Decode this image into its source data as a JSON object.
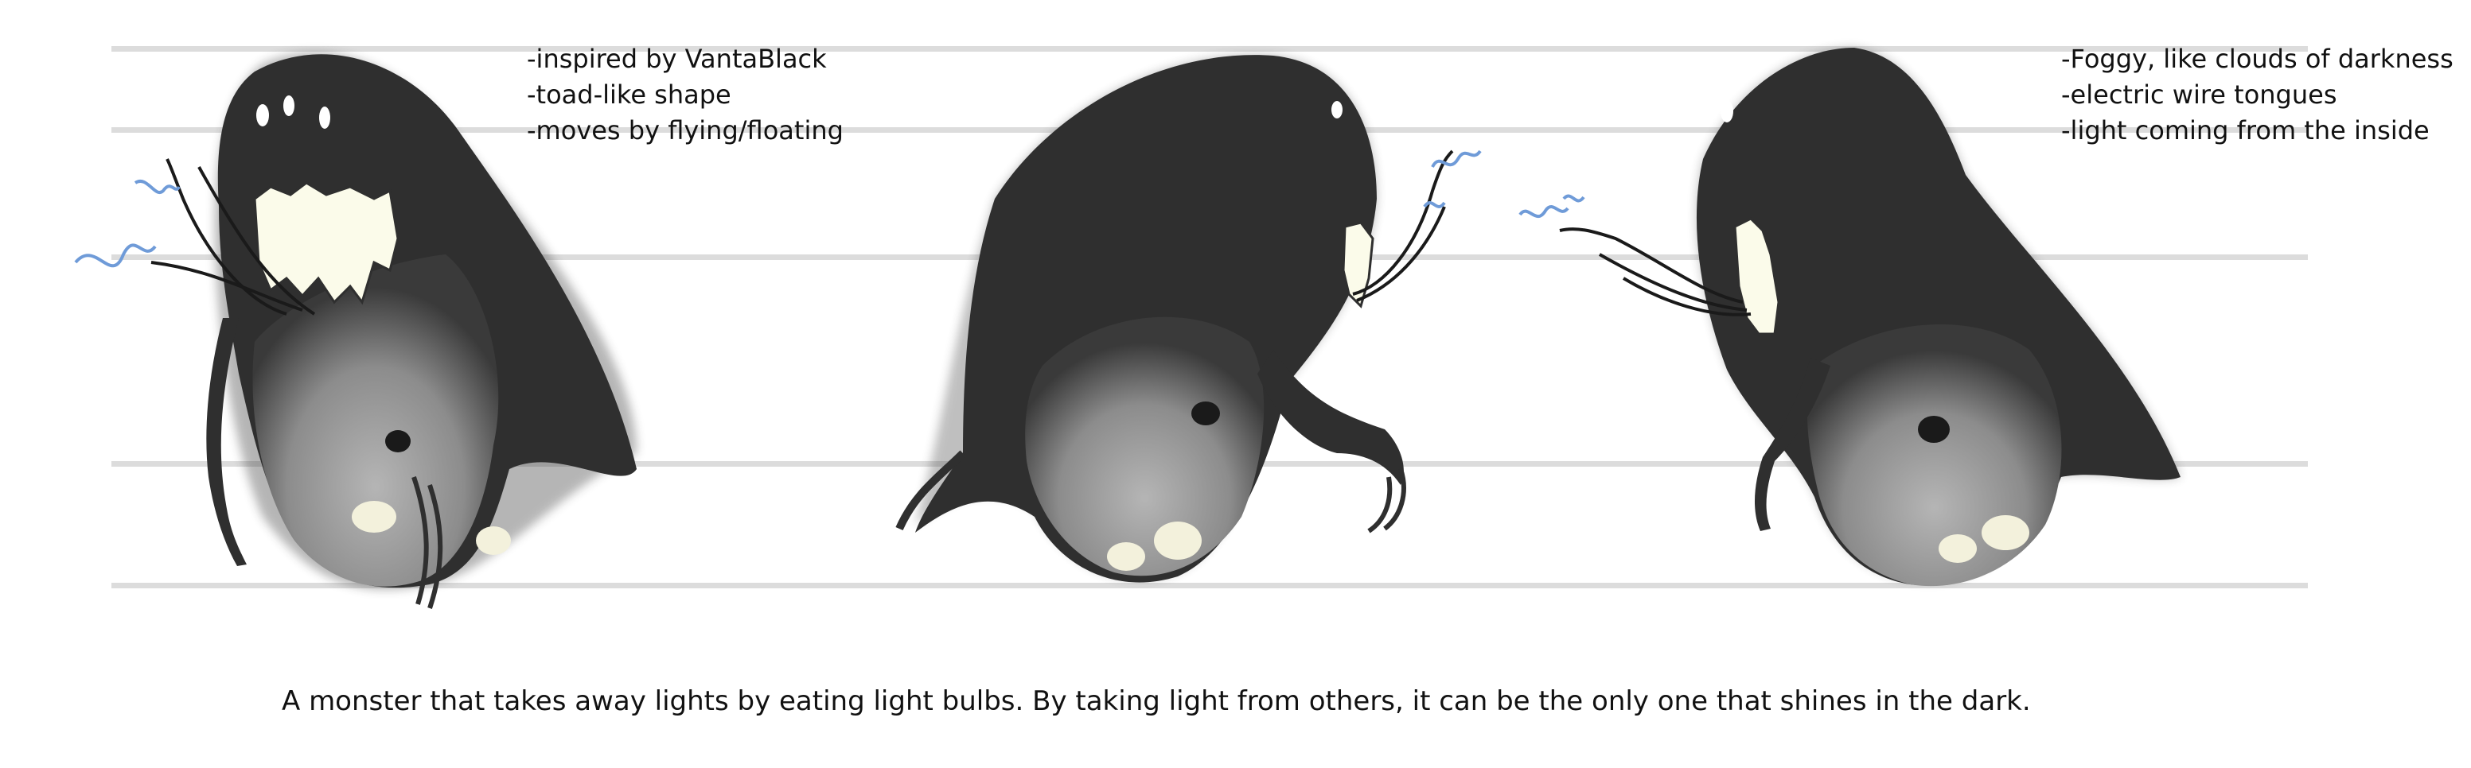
{
  "notes_left": [
    "-inspired by VantaBlack",
    "-toad-like shape",
    "-moves by flying/floating"
  ],
  "notes_right": [
    "-Foggy, like clouds of darkness",
    "-electric wire tongues",
    "-light coming from the inside"
  ],
  "caption": "A monster that takes away lights by eating light bulbs. By taking light from others, it can be the only one that shines in the dark.",
  "colors": {
    "body": "#2f2f2f",
    "belly": "#8c8c8c",
    "glow": "#fbfbea",
    "spark": "#6f9bd8",
    "guide": "#dcdcdc"
  }
}
